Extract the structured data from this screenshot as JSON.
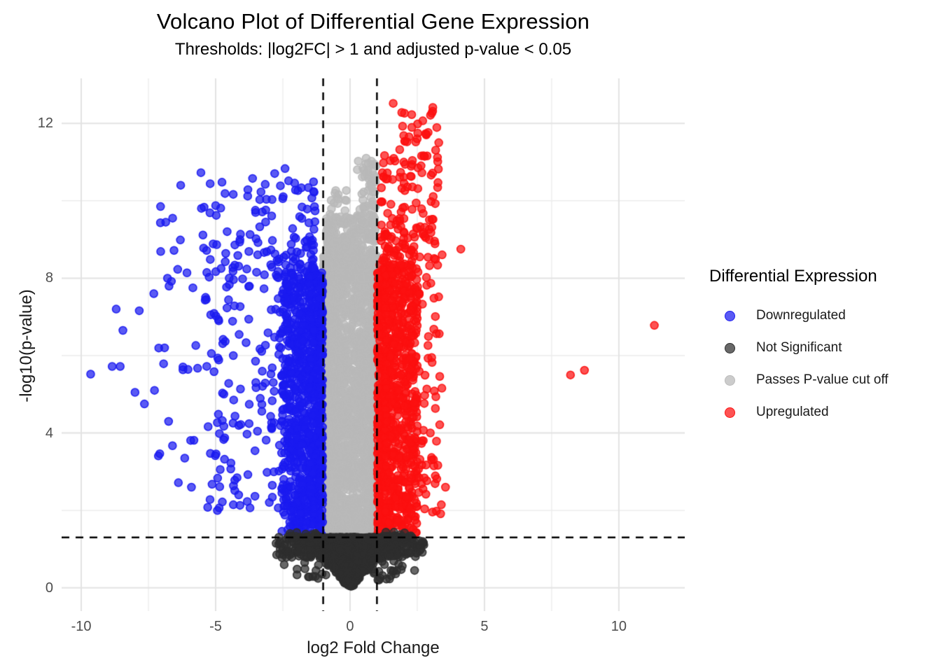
{
  "figure": {
    "title": "Volcano Plot of Differential Gene Expression",
    "subtitle": "Thresholds: |log2FC| > 1 and adjusted p-value < 0.05"
  },
  "chart_data": {
    "type": "scatter",
    "subtype": "volcano-plot",
    "title": "Volcano Plot of Differential Gene Expression",
    "subtitle": "Thresholds: |log2FC| > 1 and adjusted p-value < 0.05",
    "xlabel": "log2 Fold Change",
    "ylabel": "-log10(p-value)",
    "x_range": [
      -10.73,
      12.45
    ],
    "y_range": [
      -0.6,
      13.16
    ],
    "x_ticks": [
      -10,
      -5,
      0,
      5,
      10
    ],
    "y_ticks": [
      0,
      4,
      8,
      12
    ],
    "x_minor_gridlines": [
      -7.5,
      -2.5,
      2.5,
      7.5
    ],
    "y_minor_gridlines": [
      2,
      6,
      10
    ],
    "grid": {
      "major_color": "#e3e3e3",
      "major_width": 2,
      "minor_color": "#ededed",
      "minor_width": 1.4,
      "background": "#ffffff"
    },
    "threshold_lines": {
      "vertical_log2fc": [
        -1,
        1
      ],
      "horizontal_neglog10p": 1.301,
      "color": "#000000",
      "dash": [
        11,
        9
      ],
      "width": 2.5
    },
    "point_style": {
      "radius": 5.5,
      "fill_alpha": 0.72,
      "stroke_alpha": 0.95,
      "stroke_width": 1.5
    },
    "seed": 42,
    "legend": {
      "title": "Differential Expression",
      "position": "right",
      "items": [
        {
          "label": "Downregulated",
          "color": "#1A1AF0"
        },
        {
          "label": "Not Significant",
          "color": "#2E2E2E"
        },
        {
          "label": "Passes P-value cut off",
          "color": "#B9B9B9"
        },
        {
          "label": "Upregulated",
          "color": "#FC1010"
        }
      ]
    },
    "series": [
      {
        "name": "Passes P-value cut off",
        "color": "#B9B9B9",
        "clusters": [
          {
            "n": 2400,
            "x": [
              0.99,
              0.02
            ],
            "xbias": 1.6,
            "mirror_x": true,
            "y": [
              1.32,
              8.6
            ],
            "ybias": 1.05
          },
          {
            "n": 320,
            "x": [
              -0.9,
              0.95
            ],
            "xbias": 1.0,
            "y": [
              8.0,
              9.6
            ],
            "ybias": 1.3
          },
          {
            "n": 60,
            "x": [
              0.25,
              0.97
            ],
            "xbias": 0.7,
            "y": [
              9.4,
              11.05
            ],
            "ybias": 1.4
          },
          {
            "n": 25,
            "x": [
              -0.75,
              -0.1
            ],
            "xbias": 1.0,
            "y": [
              9.2,
              10.3
            ],
            "ybias": 1.3
          }
        ],
        "outliers": [
          [
            0.6,
            11.1
          ],
          [
            0.9,
            10.95
          ],
          [
            0.83,
            10.75
          ]
        ]
      },
      {
        "name": "Downregulated",
        "color": "#1A1AF0",
        "clusters": [
          {
            "n": 820,
            "x": [
              -1.02,
              -2.55
            ],
            "xbias": 1.55,
            "y": [
              1.35,
              8.15
            ],
            "ybias": 1.0
          },
          {
            "n": 300,
            "x": [
              -1.35,
              -5.4
            ],
            "xbias": 2.1,
            "y": [
              1.9,
              9.0
            ],
            "ybias": 1.1
          },
          {
            "n": 95,
            "x": [
              -1.3,
              -5.6
            ],
            "xbias": 1.6,
            "y": [
              8.0,
              10.85
            ],
            "ybias": 1.35
          },
          {
            "n": 40,
            "x": [
              -4.6,
              -7.9
            ],
            "xbias": 1.2,
            "y": [
              2.7,
              9.9
            ],
            "ybias": 1.0
          }
        ],
        "outliers": [
          [
            -9.65,
            5.52
          ],
          [
            -8.85,
            5.72
          ],
          [
            -8.55,
            5.72
          ],
          [
            -8.7,
            7.2
          ],
          [
            -8.45,
            6.65
          ],
          [
            -8.0,
            5.05
          ],
          [
            -7.65,
            4.75
          ],
          [
            -7.05,
            9.85
          ],
          [
            -6.6,
            9.55
          ],
          [
            -7.3,
            7.6
          ],
          [
            -6.9,
            6.2
          ],
          [
            -6.3,
            10.4
          ],
          [
            -6.15,
            3.35
          ],
          [
            -5.9,
            2.6
          ],
          [
            -6.75,
            4.3
          ]
        ]
      },
      {
        "name": "Upregulated",
        "color": "#FC1010",
        "clusters": [
          {
            "n": 800,
            "x": [
              1.02,
              2.5
            ],
            "xbias": 1.55,
            "y": [
              1.35,
              8.35
            ],
            "ybias": 1.0
          },
          {
            "n": 260,
            "x": [
              1.3,
              3.5
            ],
            "xbias": 2.1,
            "y": [
              1.9,
              9.2
            ],
            "ybias": 1.1
          },
          {
            "n": 120,
            "x": [
              1.15,
              3.3
            ],
            "xbias": 1.5,
            "y": [
              8.3,
              11.2
            ],
            "ybias": 1.25
          },
          {
            "n": 28,
            "x": [
              1.6,
              3.3
            ],
            "xbias": 1.2,
            "y": [
              11.1,
              12.55
            ],
            "ybias": 1.1
          }
        ],
        "outliers": [
          [
            4.12,
            8.75
          ],
          [
            8.2,
            5.5
          ],
          [
            8.72,
            5.62
          ],
          [
            11.32,
            6.78
          ],
          [
            3.55,
            2.6
          ],
          [
            2.82,
            2.42
          ],
          [
            3.3,
            11.5
          ],
          [
            2.15,
            1.75
          ]
        ]
      },
      {
        "name": "Not Significant",
        "color": "#2E2E2E",
        "clusters": [
          {
            "type": "wedge",
            "n": 2700,
            "y": [
              0.03,
              1.31
            ],
            "ybias": 0.6,
            "halfwidth": [
              0.15,
              2.3
            ],
            "wpow": 1.3
          },
          {
            "n": 130,
            "x": [
              1.4,
              2.75
            ],
            "xbias": 1.3,
            "mirror_x": true,
            "y": [
              0.78,
              1.34
            ],
            "ybias": 1.0
          },
          {
            "n": 45,
            "x": [
              0.8,
              2.0
            ],
            "xbias": 1.2,
            "mirror_x": true,
            "y": [
              0.2,
              0.85
            ],
            "ybias": 1.0
          },
          {
            "n": 22,
            "x": [
              1.2,
              2.35
            ],
            "xbias": 1.0,
            "mirror_x": true,
            "y": [
              1.3,
              1.44
            ],
            "ybias": 1.0
          }
        ],
        "outliers": [
          [
            2.55,
            1.08
          ],
          [
            -2.6,
            1.0
          ],
          [
            2.4,
            0.45
          ],
          [
            -2.45,
            0.6
          ],
          [
            -2.75,
            1.15
          ],
          [
            2.7,
            1.2
          ]
        ]
      }
    ]
  }
}
